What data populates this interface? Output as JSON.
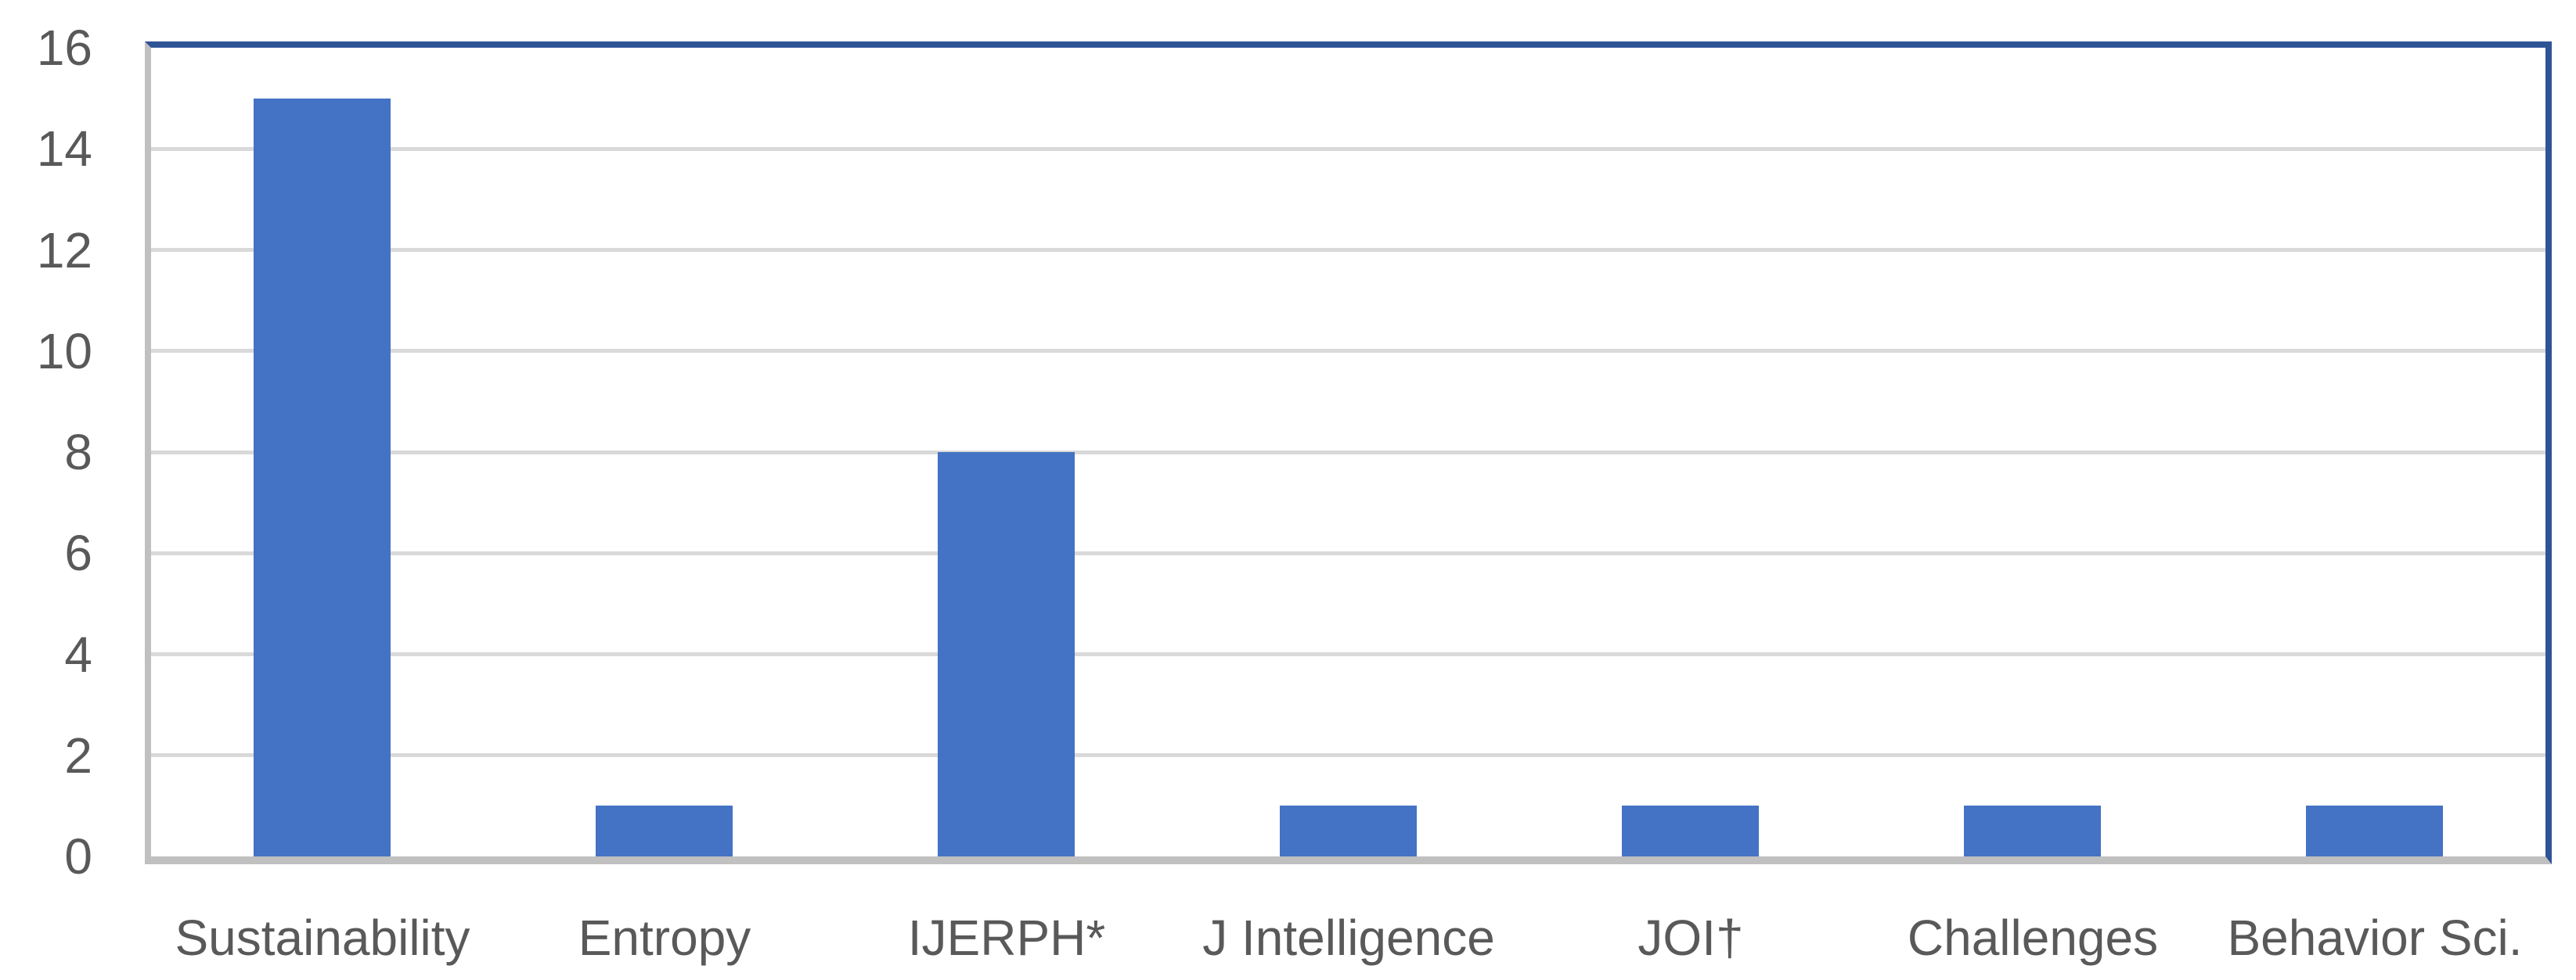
{
  "chart_data": {
    "type": "bar",
    "categories": [
      "Sustainability",
      "Entropy",
      "IJERPH*",
      "J Intelligence",
      "JOI†",
      "Challenges",
      "Behavior Sci."
    ],
    "values": [
      15,
      1,
      8,
      1,
      1,
      1,
      1
    ],
    "title": "",
    "xlabel": "",
    "ylabel": "",
    "ylim": [
      0,
      16
    ],
    "yticks": [
      0,
      2,
      4,
      6,
      8,
      10,
      12,
      14,
      16
    ],
    "gridlines": [
      2,
      4,
      6,
      8,
      10,
      12,
      14
    ],
    "grid": "horizontal",
    "legend_position": "none",
    "bar_color": "#4472C4",
    "frame_color": "#2F5496",
    "axis_color": "#C0C0C0",
    "gridline_color": "#D9D9D9",
    "tick_label_color": "#595959"
  }
}
